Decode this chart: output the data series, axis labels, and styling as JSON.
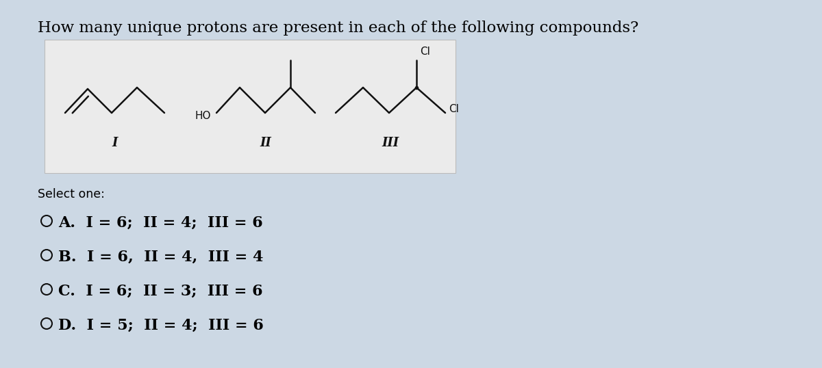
{
  "title": "How many unique protons are present in each of the following compounds?",
  "title_fontsize": 16.5,
  "background_color": "#ccd8e4",
  "box_facecolor": "#ebebeb",
  "box_edgecolor": "#bbbbbb",
  "text_color": "#000000",
  "select_one": "Select one:",
  "option_A": "A.  I = 6;  II = 4;  III = 6",
  "option_B": "B.  I = 6,  II = 4,  III = 4",
  "option_C": "C.  I = 6;  II = 3;  III = 6",
  "option_D": "D.  I = 5;  II = 4;  III = 6",
  "line_color": "#111111",
  "lw": 1.8
}
